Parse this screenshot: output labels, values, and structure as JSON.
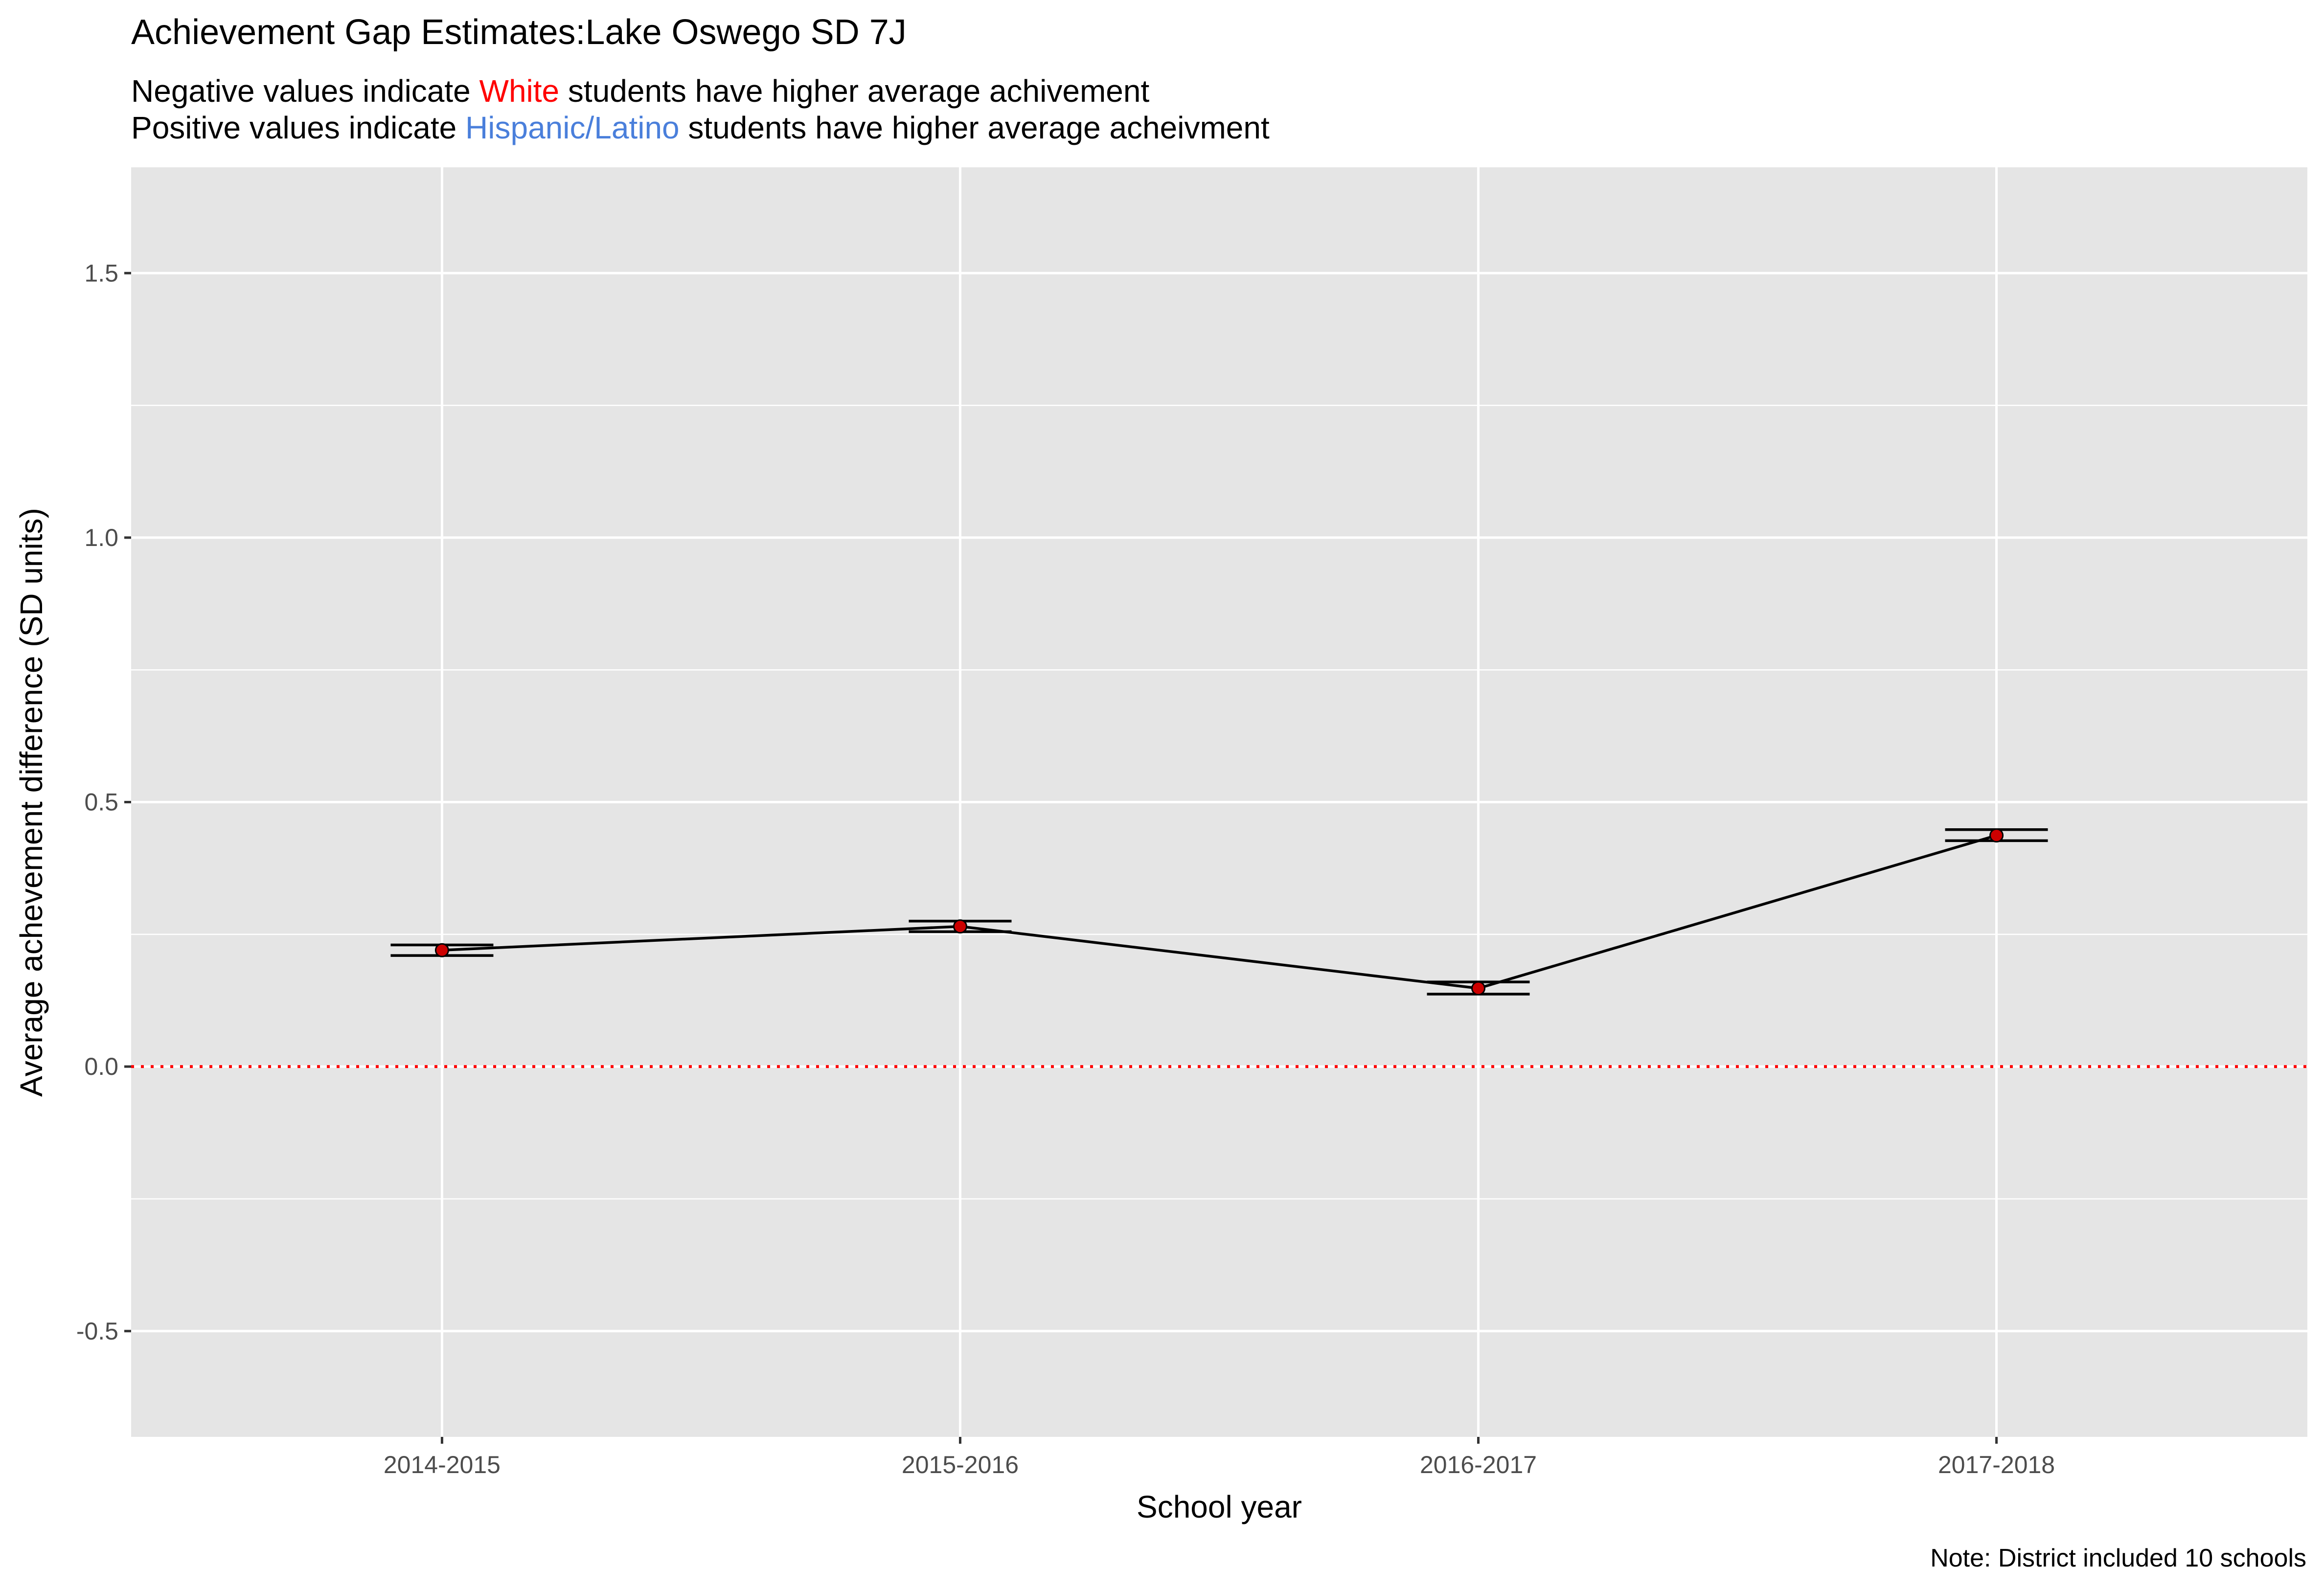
{
  "title": "Achievement Gap Estimates:Lake Oswego SD 7J",
  "subtitle": {
    "line1": {
      "prefix": "Negative values indicate ",
      "highlight": "White",
      "suffix": " students have higher average achivement",
      "highlight_color": "#ff0000"
    },
    "line2": {
      "prefix": "Positive values indicate ",
      "highlight": "Hispanic/Latino",
      "suffix": " students have higher average acheivment",
      "highlight_color": "#4a7fdb"
    }
  },
  "caption": "Note: District included 10 schools",
  "colors": {
    "panel_background": "#e5e5e5",
    "gridline": "#ffffff",
    "line": "#000000",
    "point": "#cc0000",
    "reference_line": "#ff0000",
    "tick_label": "#4d4d4d"
  },
  "chart_data": {
    "type": "line",
    "xlabel": "School year",
    "ylabel": "Average achevement difference (SD units)",
    "categories": [
      "2014-2015",
      "2015-2016",
      "2016-2017",
      "2017-2018"
    ],
    "values": [
      0.22,
      0.265,
      0.148,
      0.437
    ],
    "error_bars": [
      {
        "lower": 0.21,
        "upper": 0.23
      },
      {
        "lower": 0.255,
        "upper": 0.275
      },
      {
        "lower": 0.137,
        "upper": 0.16
      },
      {
        "lower": 0.427,
        "upper": 0.448
      }
    ],
    "ylim": [
      -0.7,
      1.7
    ],
    "yticks": [
      -0.5,
      0.0,
      0.5,
      1.0,
      1.5
    ],
    "ytick_labels": [
      "-0.5",
      "0.0",
      "0.5",
      "1.0",
      "1.5"
    ],
    "reference_line": {
      "y": 0.0,
      "style": "dotted"
    },
    "grid": true,
    "legend": "none"
  }
}
